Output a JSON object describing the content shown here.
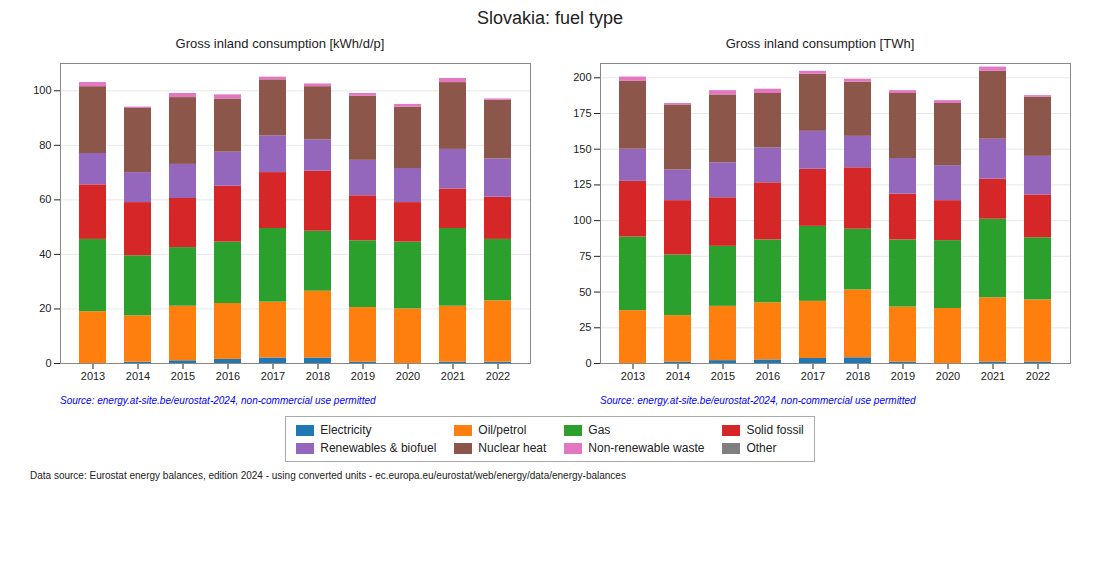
{
  "chart_data": [
    {
      "type": "bar",
      "stacked": true,
      "grid": true,
      "legend": "bottom",
      "title": "Slovakia: fuel type",
      "subtitle": "Gross inland consumption [kWh/d/p]",
      "annotations": [
        "Source: energy.at-site.be/eurostat-2024, non-commercial use permitted",
        "Data source: Eurostat energy balances, edition 2024 - using converted units - ec.europa.eu/eurostat/web/energy/data/energy-balances"
      ],
      "categories": [
        "2013",
        "2014",
        "2015",
        "2016",
        "2017",
        "2018",
        "2019",
        "2020",
        "2021",
        "2022"
      ],
      "series": [
        {
          "name": "Electricity",
          "color": "#1f77b4",
          "values": [
            0.0,
            0.5,
            1.0,
            1.5,
            2.0,
            2.0,
            0.5,
            0.0,
            0.5,
            0.5
          ]
        },
        {
          "name": "Oil/petrol",
          "color": "#ff7f0e",
          "values": [
            19.0,
            17.0,
            20.0,
            20.5,
            20.5,
            24.5,
            20.0,
            20.0,
            20.5,
            22.5
          ]
        },
        {
          "name": "Gas",
          "color": "#2ca02c",
          "values": [
            26.5,
            22.0,
            21.5,
            22.5,
            27.0,
            22.0,
            24.5,
            24.5,
            28.5,
            22.5
          ]
        },
        {
          "name": "Solid fossil",
          "color": "#d62728",
          "values": [
            20.0,
            19.5,
            18.0,
            20.5,
            20.5,
            22.0,
            16.5,
            14.5,
            14.5,
            15.5
          ]
        },
        {
          "name": "Renewables & biofuel",
          "color": "#9467bd",
          "values": [
            11.5,
            11.0,
            12.5,
            12.5,
            13.5,
            11.5,
            13.0,
            12.5,
            14.5,
            14.0
          ]
        },
        {
          "name": "Nuclear heat",
          "color": "#8c564b",
          "values": [
            24.5,
            23.5,
            24.5,
            19.5,
            20.5,
            19.5,
            23.5,
            22.5,
            24.5,
            21.5
          ]
        },
        {
          "name": "Non-renewable waste",
          "color": "#e377c2",
          "values": [
            1.5,
            0.5,
            1.5,
            1.5,
            1.0,
            1.0,
            1.0,
            1.0,
            1.5,
            0.5
          ]
        },
        {
          "name": "Other",
          "color": "#7f7f7f",
          "values": [
            0.0,
            0.0,
            0.0,
            0.0,
            0.0,
            0.0,
            0.0,
            0.0,
            0.0,
            0.0
          ]
        }
      ],
      "ylim": [
        0,
        110
      ],
      "yticks": [
        0,
        20,
        40,
        60,
        80,
        100
      ]
    },
    {
      "type": "bar",
      "stacked": true,
      "grid": true,
      "title": "Slovakia: fuel type",
      "subtitle": "Gross inland consumption [TWh]",
      "annotations": [
        "Source: energy.at-site.be/eurostat-2024, non-commercial use permitted"
      ],
      "categories": [
        "2013",
        "2014",
        "2015",
        "2016",
        "2017",
        "2018",
        "2019",
        "2020",
        "2021",
        "2022"
      ],
      "series": [
        {
          "name": "Electricity",
          "color": "#1f77b4",
          "values": [
            0.0,
            1.0,
            2.0,
            2.5,
            3.5,
            4.0,
            1.0,
            0.0,
            1.0,
            1.0
          ]
        },
        {
          "name": "Oil/petrol",
          "color": "#ff7f0e",
          "values": [
            37.0,
            32.5,
            38.0,
            40.0,
            40.0,
            47.5,
            38.5,
            38.5,
            45.0,
            43.5
          ]
        },
        {
          "name": "Gas",
          "color": "#2ca02c",
          "values": [
            51.5,
            42.5,
            42.0,
            44.0,
            52.5,
            42.5,
            47.0,
            47.5,
            55.0,
            43.5
          ]
        },
        {
          "name": "Solid fossil",
          "color": "#d62728",
          "values": [
            39.0,
            38.0,
            34.0,
            40.0,
            40.0,
            43.0,
            32.0,
            28.0,
            28.0,
            30.0
          ]
        },
        {
          "name": "Renewables & biofuel",
          "color": "#9467bd",
          "values": [
            22.5,
            21.5,
            24.5,
            24.5,
            26.5,
            22.0,
            25.0,
            24.5,
            28.0,
            27.0
          ]
        },
        {
          "name": "Nuclear heat",
          "color": "#8c564b",
          "values": [
            47.5,
            45.5,
            47.5,
            38.0,
            40.0,
            38.0,
            45.5,
            43.5,
            47.5,
            41.5
          ]
        },
        {
          "name": "Non-renewable waste",
          "color": "#e377c2",
          "values": [
            3.0,
            1.0,
            3.0,
            3.0,
            2.0,
            2.0,
            2.0,
            2.0,
            3.0,
            1.0
          ]
        },
        {
          "name": "Other",
          "color": "#7f7f7f",
          "values": [
            0.0,
            0.0,
            0.0,
            0.0,
            0.0,
            0.0,
            0.0,
            0.0,
            0.0,
            0.0
          ]
        }
      ],
      "ylim": [
        0,
        210
      ],
      "yticks": [
        0,
        25,
        50,
        75,
        100,
        125,
        150,
        175,
        200
      ]
    }
  ]
}
